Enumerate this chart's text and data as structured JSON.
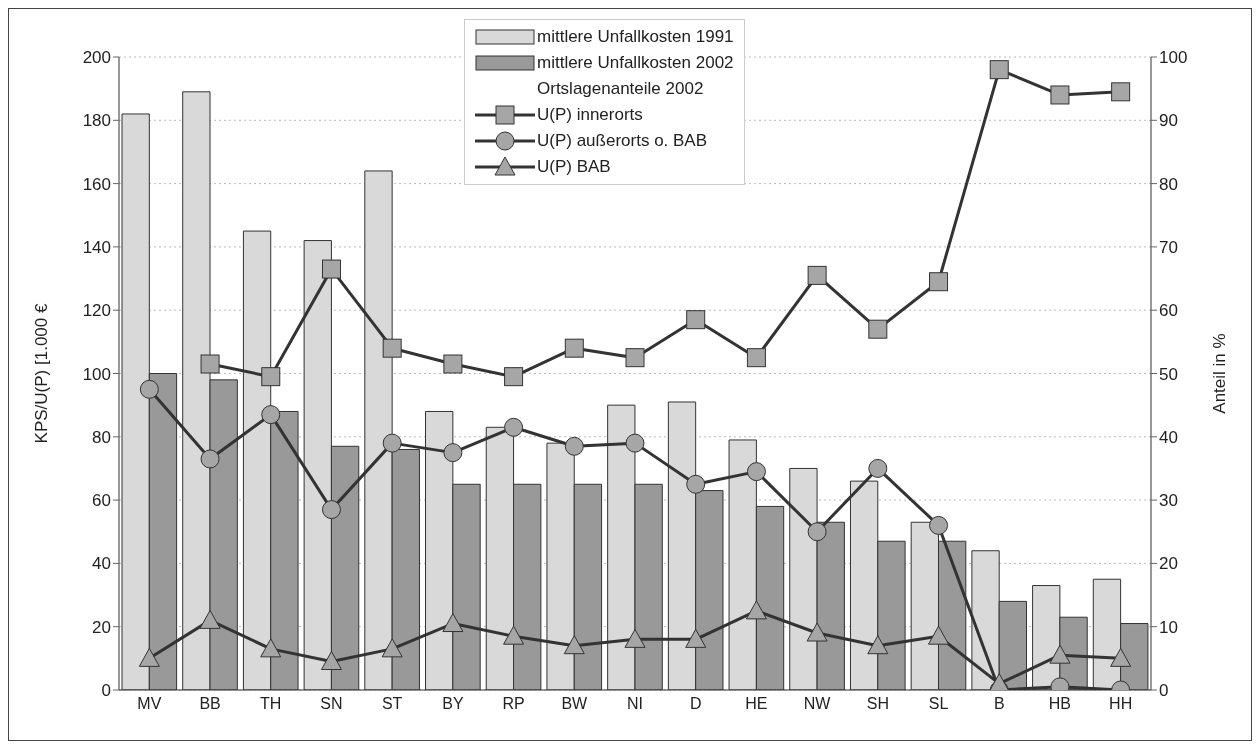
{
  "chart_data": {
    "type": "bar",
    "categories": [
      "MV",
      "BB",
      "TH",
      "SN",
      "ST",
      "BY",
      "RP",
      "BW",
      "NI",
      "D",
      "HE",
      "NW",
      "SH",
      "SL",
      "B",
      "HB",
      "HH"
    ],
    "ylabel": "KPS/U(P) [1.000 €",
    "y2label": "Anteil in %",
    "ylim": [
      0,
      200
    ],
    "yticks": [
      0,
      20,
      40,
      60,
      80,
      100,
      120,
      140,
      160,
      180,
      200
    ],
    "y2lim": [
      0,
      100
    ],
    "y2ticks": [
      0,
      10,
      20,
      30,
      40,
      50,
      60,
      70,
      80,
      90,
      100
    ],
    "grid": "y",
    "legend": "top",
    "legend_title": "Ortslagenanteile 2002",
    "series": [
      {
        "name": "mittlere Unfallkosten 1991",
        "color": "#d9d9d9",
        "values": [
          182,
          189,
          145,
          142,
          164,
          88,
          83,
          78,
          90,
          91,
          79,
          70,
          66,
          53,
          44,
          33,
          35
        ]
      },
      {
        "name": "mittlere Unfallkosten 2002",
        "color": "#999999",
        "values": [
          100,
          98,
          88,
          77,
          76,
          65,
          65,
          65,
          65,
          63,
          58,
          53,
          47,
          47,
          28,
          23,
          21
        ]
      },
      {
        "name": "U(P) innerorts",
        "type": "line",
        "axis": "y2",
        "marker": "square",
        "color": "#333333",
        "values": [
          null,
          51.5,
          49.5,
          66.5,
          54,
          51.5,
          49.5,
          54,
          52.5,
          58.5,
          52.5,
          65.5,
          57,
          64.5,
          98,
          94,
          94.5
        ]
      },
      {
        "name": "U(P) außerorts o. BAB",
        "type": "line",
        "axis": "y2",
        "marker": "circle",
        "color": "#333333",
        "values": [
          47.5,
          36.5,
          43.5,
          28.5,
          39,
          37.5,
          41.5,
          38.5,
          39,
          32.5,
          34.5,
          25,
          35,
          26,
          0,
          0.5,
          0
        ]
      },
      {
        "name": "U(P) BAB",
        "type": "line",
        "axis": "y2",
        "marker": "triangle",
        "color": "#333333",
        "values": [
          5,
          11,
          6.5,
          4.5,
          6.5,
          10.5,
          8.5,
          7,
          8,
          8,
          12.5,
          9,
          7,
          8.5,
          1,
          5.5,
          5
        ]
      }
    ]
  }
}
